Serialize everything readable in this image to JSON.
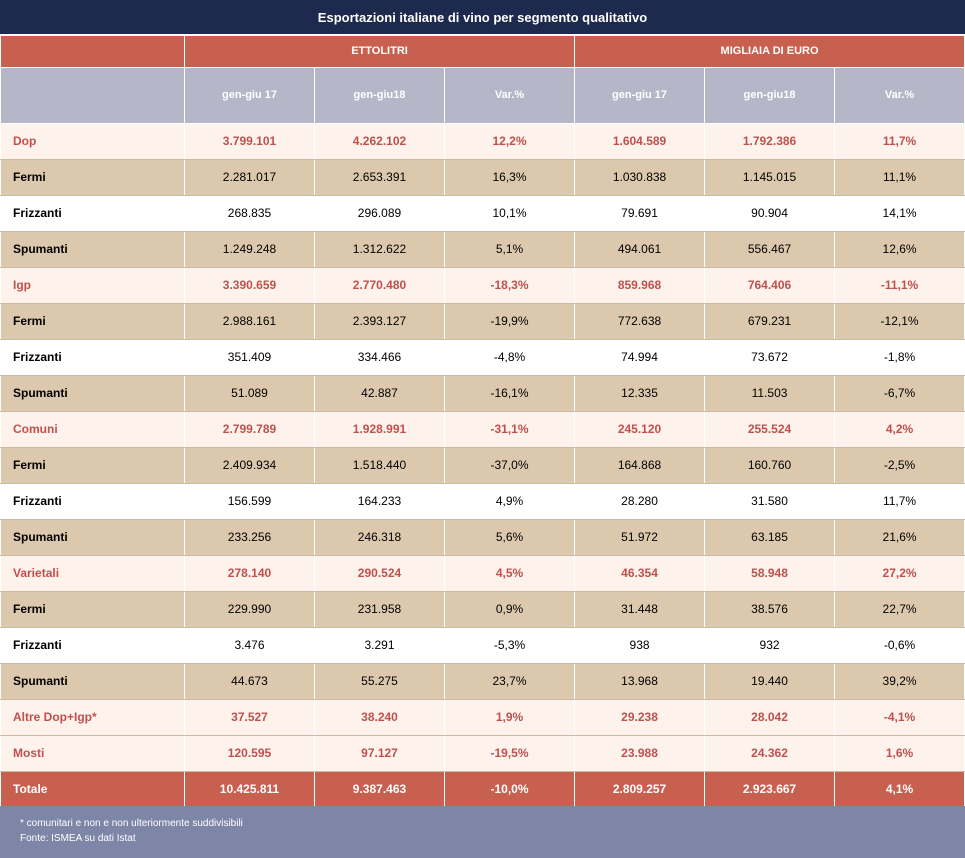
{
  "title": "Esportazioni italiane di vino per segmento qualitativo",
  "groups": [
    "ETTOLITRI",
    "MIGLIAIA DI EURO"
  ],
  "columns": [
    "gen-giu 17",
    "gen-giu18",
    "Var.%",
    "gen-giu 17",
    "gen-giu18",
    "Var.%"
  ],
  "rows": [
    {
      "label": "Dop",
      "type": "cat",
      "values": [
        "3.799.101",
        "4.262.102",
        "12,2%",
        "1.604.589",
        "1.792.386",
        "11,7%"
      ]
    },
    {
      "label": "Fermi",
      "type": "sub",
      "values": [
        "2.281.017",
        "2.653.391",
        "16,3%",
        "1.030.838",
        "1.145.015",
        "11,1%"
      ]
    },
    {
      "label": "Frizzanti",
      "type": "sub",
      "values": [
        "268.835",
        "296.089",
        "10,1%",
        "79.691",
        "90.904",
        "14,1%"
      ]
    },
    {
      "label": "Spumanti",
      "type": "sub",
      "values": [
        "1.249.248",
        "1.312.622",
        "5,1%",
        "494.061",
        "556.467",
        "12,6%"
      ]
    },
    {
      "label": "Igp",
      "type": "cat",
      "values": [
        "3.390.659",
        "2.770.480",
        "-18,3%",
        "859.968",
        "764.406",
        "-11,1%"
      ]
    },
    {
      "label": "Fermi",
      "type": "sub",
      "values": [
        "2.988.161",
        "2.393.127",
        "-19,9%",
        "772.638",
        "679.231",
        "-12,1%"
      ]
    },
    {
      "label": "Frizzanti",
      "type": "sub",
      "values": [
        "351.409",
        "334.466",
        "-4,8%",
        "74.994",
        "73.672",
        "-1,8%"
      ]
    },
    {
      "label": "Spumanti",
      "type": "sub",
      "values": [
        "51.089",
        "42.887",
        "-16,1%",
        "12.335",
        "11.503",
        "-6,7%"
      ]
    },
    {
      "label": "Comuni",
      "type": "cat",
      "values": [
        "2.799.789",
        "1.928.991",
        "-31,1%",
        "245.120",
        "255.524",
        "4,2%"
      ]
    },
    {
      "label": "Fermi",
      "type": "sub",
      "values": [
        "2.409.934",
        "1.518.440",
        "-37,0%",
        "164.868",
        "160.760",
        "-2,5%"
      ]
    },
    {
      "label": "Frizzanti",
      "type": "sub",
      "values": [
        "156.599",
        "164.233",
        "4,9%",
        "28.280",
        "31.580",
        "11,7%"
      ]
    },
    {
      "label": "Spumanti",
      "type": "sub",
      "values": [
        "233.256",
        "246.318",
        "5,6%",
        "51.972",
        "63.185",
        "21,6%"
      ]
    },
    {
      "label": "Varietali",
      "type": "cat",
      "values": [
        "278.140",
        "290.524",
        "4,5%",
        "46.354",
        "58.948",
        "27,2%"
      ]
    },
    {
      "label": "Fermi",
      "type": "sub",
      "values": [
        "229.990",
        "231.958",
        "0,9%",
        "31.448",
        "38.576",
        "22,7%"
      ]
    },
    {
      "label": "Frizzanti",
      "type": "sub",
      "values": [
        "3.476",
        "3.291",
        "-5,3%",
        "938",
        "932",
        "-0,6%"
      ]
    },
    {
      "label": "Spumanti",
      "type": "sub",
      "values": [
        "44.673",
        "55.275",
        "23,7%",
        "13.968",
        "19.440",
        "39,2%"
      ]
    },
    {
      "label": "Altre Dop+Igp*",
      "type": "cat",
      "values": [
        "37.527",
        "38.240",
        "1,9%",
        "29.238",
        "28.042",
        "-4,1%"
      ]
    },
    {
      "label": "Mosti",
      "type": "cat",
      "values": [
        "120.595",
        "97.127",
        "-19,5%",
        "23.988",
        "24.362",
        "1,6%"
      ]
    },
    {
      "label": "Totale",
      "type": "total",
      "values": [
        "10.425.811",
        "9.387.463",
        "-10,0%",
        "2.809.257",
        "2.923.667",
        "4,1%"
      ]
    }
  ],
  "footer": {
    "note": "* comunitari e non e non ulteriormente suddivisibili",
    "source": "Fonte: ISMEA su dati Istat"
  },
  "colors": {
    "title_bg": "#1d2a4d",
    "header_red": "#c8604f",
    "subheader_gray": "#b5b6c7",
    "category_text": "#c0504d",
    "band_tan": "#dcc8ad",
    "footer_blue": "#7e86a8"
  }
}
